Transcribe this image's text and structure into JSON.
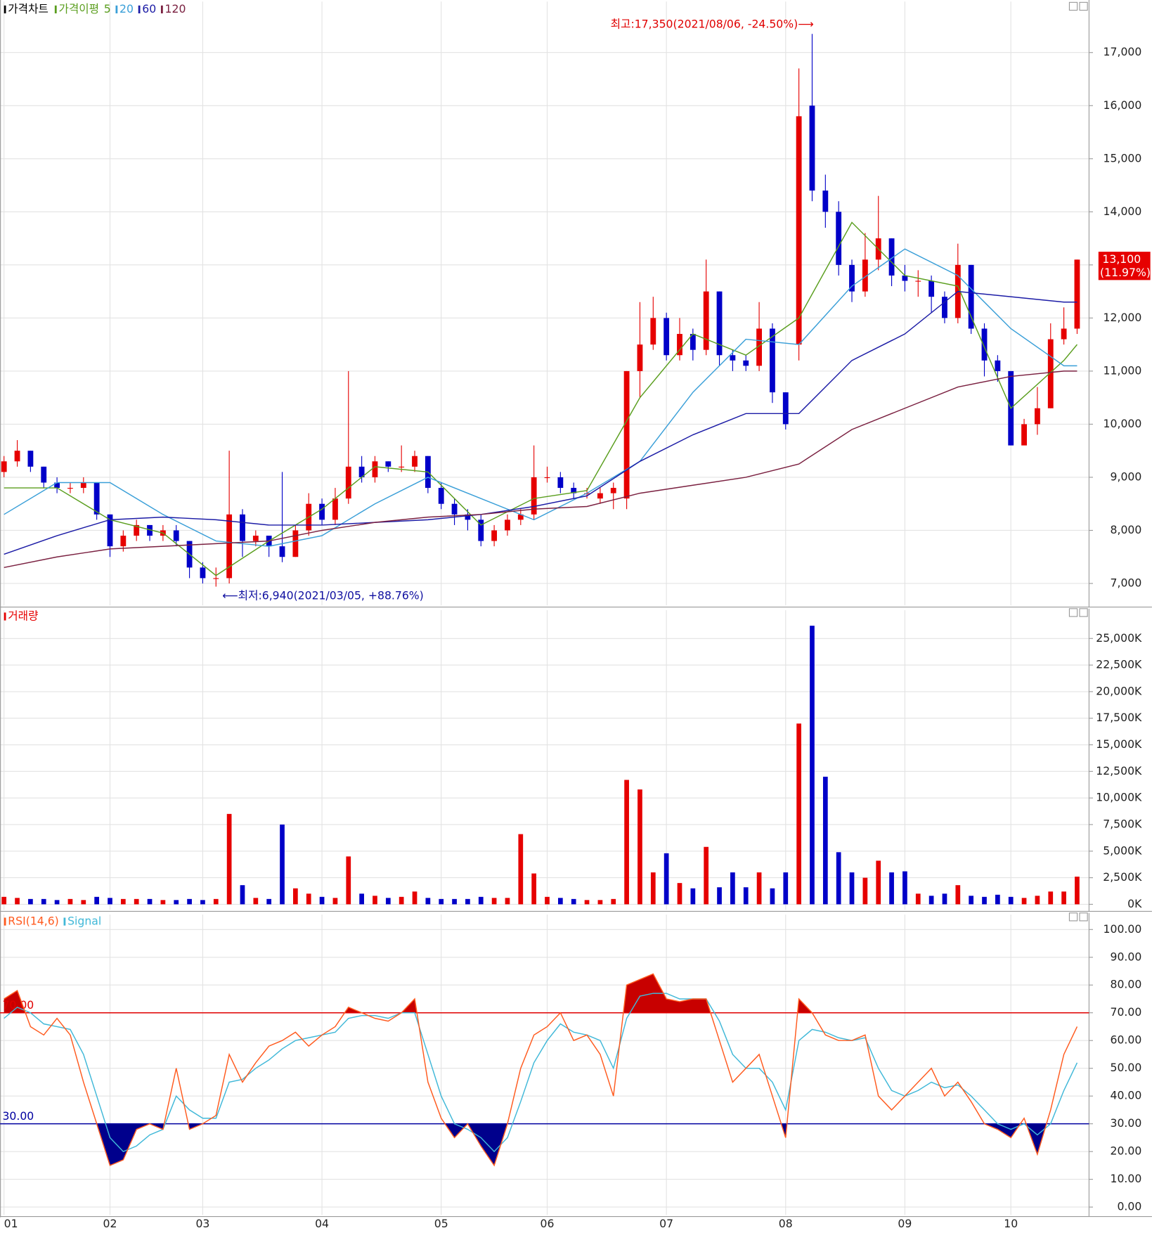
{
  "chart_data": [
    {
      "type": "candlestick",
      "title": "가격차트",
      "ma_title": "가격이평",
      "up_color": "#e60000",
      "down_color": "#0000c8",
      "open": [
        9100,
        9300,
        9500,
        9200,
        8900,
        8800,
        8800,
        8900,
        8300,
        7700,
        7900,
        8100,
        7900,
        8000,
        7800,
        7300,
        7100,
        7100,
        8300,
        7800,
        7900,
        7700,
        7500,
        8000,
        8500,
        8200,
        8600,
        9200,
        9000,
        9300,
        9200,
        9200,
        9400,
        8800,
        8500,
        8300,
        8200,
        7800,
        8000,
        8200,
        8300,
        9000,
        9000,
        8800,
        8700,
        8600,
        8700,
        8600,
        11000,
        11500,
        12000,
        11300,
        11700,
        11400,
        12500,
        11300,
        11200,
        11100,
        11800,
        10600,
        11500,
        16000,
        14400,
        14000,
        13000,
        12500,
        13100,
        13500,
        12800,
        12700,
        12700,
        12400,
        12000,
        13000,
        11800,
        11200,
        11000,
        9600,
        10000,
        10300,
        11600,
        11800
      ],
      "high": [
        9400,
        9700,
        9500,
        9200,
        9000,
        8900,
        9000,
        8900,
        8300,
        8000,
        8200,
        8100,
        8100,
        8100,
        7800,
        7400,
        7300,
        9500,
        8400,
        8000,
        7900,
        9100,
        8100,
        8700,
        8600,
        8800,
        11000,
        9400,
        9400,
        9300,
        9600,
        9500,
        9400,
        8900,
        8600,
        8400,
        8300,
        8100,
        8300,
        8400,
        9600,
        9200,
        9100,
        8900,
        8800,
        8800,
        8900,
        11000,
        12300,
        12400,
        12100,
        12000,
        11800,
        13100,
        12500,
        11400,
        11300,
        12300,
        11900,
        10600,
        16700,
        17350,
        14700,
        14200,
        13100,
        13600,
        14300,
        13500,
        13000,
        12900,
        12800,
        12500,
        13400,
        13000,
        11900,
        11300,
        11000,
        10100,
        10700,
        11900,
        12200,
        13100
      ],
      "low": [
        9000,
        9200,
        9100,
        8800,
        8700,
        8700,
        8700,
        8200,
        7500,
        7600,
        7800,
        7800,
        7800,
        7700,
        7100,
        7000,
        6940,
        7000,
        7500,
        7700,
        7500,
        7400,
        7500,
        7900,
        8100,
        8100,
        8500,
        8900,
        8900,
        9100,
        9100,
        9100,
        8700,
        8400,
        8100,
        8000,
        7700,
        7700,
        7900,
        8100,
        8200,
        8900,
        8700,
        8600,
        8600,
        8500,
        8400,
        8400,
        10500,
        11400,
        11200,
        11200,
        11200,
        11300,
        11100,
        11000,
        11000,
        11000,
        10400,
        9900,
        11200,
        14200,
        13700,
        12800,
        12300,
        12400,
        12900,
        12600,
        12500,
        12400,
        12100,
        11900,
        11900,
        11700,
        10900,
        10800,
        9600,
        9700,
        9800,
        10300,
        11500,
        11700
      ],
      "close": [
        9300,
        9500,
        9200,
        8900,
        8800,
        8800,
        8900,
        8300,
        7700,
        7900,
        8100,
        7900,
        8000,
        7800,
        7300,
        7100,
        7100,
        8300,
        7800,
        7900,
        7700,
        7500,
        8000,
        8500,
        8200,
        8600,
        9200,
        9000,
        9300,
        9200,
        9200,
        9400,
        8800,
        8500,
        8300,
        8200,
        7800,
        8000,
        8200,
        8300,
        9000,
        9000,
        8800,
        8700,
        8700,
        8700,
        8800,
        11000,
        11500,
        12000,
        11300,
        11700,
        11400,
        12500,
        11300,
        11200,
        11100,
        11800,
        10600,
        10000,
        15800,
        14400,
        14000,
        13000,
        12500,
        13100,
        13500,
        12800,
        12700,
        12700,
        12400,
        12000,
        13000,
        11800,
        11200,
        11000,
        9600,
        10000,
        10300,
        11600,
        11800,
        13100
      ],
      "lines": [
        {
          "name": "5",
          "color": "#5a9e1e",
          "x": [
            0,
            4,
            8,
            12,
            16,
            20,
            24,
            28,
            32,
            36,
            40,
            44,
            48,
            52,
            56,
            60,
            64,
            68,
            72,
            76,
            80,
            81
          ],
          "values": [
            8800,
            8800,
            8200,
            7950,
            7150,
            7800,
            8400,
            9200,
            9100,
            8100,
            8600,
            8750,
            10500,
            11700,
            11300,
            12000,
            13800,
            12800,
            12600,
            10300,
            11200,
            11500
          ]
        },
        {
          "name": "20",
          "color": "#3a9fd8",
          "x": [
            0,
            4,
            8,
            12,
            16,
            20,
            24,
            28,
            32,
            36,
            40,
            44,
            48,
            52,
            56,
            60,
            64,
            68,
            72,
            76,
            80,
            81
          ],
          "values": [
            8300,
            8900,
            8900,
            8300,
            7800,
            7700,
            7900,
            8500,
            9000,
            8600,
            8200,
            8700,
            9300,
            10600,
            11600,
            11500,
            12600,
            13300,
            12800,
            11800,
            11100,
            11100
          ]
        },
        {
          "name": "60",
          "color": "#1c1ca6",
          "x": [
            0,
            4,
            8,
            12,
            16,
            20,
            24,
            28,
            32,
            36,
            40,
            44,
            48,
            52,
            56,
            60,
            64,
            68,
            72,
            76,
            80,
            81
          ],
          "values": [
            7550,
            7900,
            8200,
            8250,
            8200,
            8100,
            8100,
            8150,
            8200,
            8300,
            8450,
            8650,
            9300,
            9800,
            10200,
            10200,
            11200,
            11700,
            12500,
            12400,
            12300,
            12300
          ]
        },
        {
          "name": "120",
          "color": "#7a2040",
          "x": [
            0,
            4,
            8,
            12,
            16,
            20,
            24,
            28,
            32,
            36,
            40,
            44,
            48,
            52,
            56,
            60,
            64,
            68,
            72,
            76,
            80,
            81
          ],
          "values": [
            7300,
            7500,
            7650,
            7700,
            7750,
            7800,
            8000,
            8150,
            8250,
            8300,
            8400,
            8450,
            8700,
            8850,
            9000,
            9250,
            9900,
            10300,
            10700,
            10900,
            11000,
            11000
          ]
        }
      ],
      "ylim": [
        6585,
        17960
      ],
      "yticks": [
        {
          "value": 7000,
          "label": "7,000"
        },
        {
          "value": 8000,
          "label": "8,000"
        },
        {
          "value": 9000,
          "label": "9,000"
        },
        {
          "value": 10000,
          "label": "10,000"
        },
        {
          "value": 11000,
          "label": "11,000"
        },
        {
          "value": 12000,
          "label": "12,000"
        },
        {
          "value": 13000,
          "label": "13,000"
        },
        {
          "value": 14000,
          "label": "14,000"
        },
        {
          "value": 15000,
          "label": "15,000"
        },
        {
          "value": 16000,
          "label": "16,000"
        },
        {
          "value": 17000,
          "label": "17,000"
        }
      ],
      "grid": true,
      "high_annotation": "최고:17,350(2021/08/06, -24.50%)⟶",
      "low_annotation": "⟵최저:6,940(2021/03/05, +88.76%)",
      "last_price_label": "13,100",
      "last_change_label": "(11.97%)"
    },
    {
      "type": "bar",
      "title": "거래량",
      "title_color": "#e60000",
      "values": [
        700,
        600,
        500,
        500,
        400,
        500,
        400,
        700,
        600,
        500,
        500,
        500,
        400,
        400,
        500,
        400,
        500,
        8500,
        1800,
        600,
        500,
        7500,
        1500,
        1000,
        700,
        600,
        4500,
        1000,
        800,
        600,
        700,
        1200,
        600,
        500,
        500,
        500,
        700,
        600,
        600,
        6600,
        2900,
        700,
        600,
        500,
        400,
        400,
        500,
        11700,
        10800,
        3000,
        4800,
        2000,
        1500,
        5400,
        1600,
        3000,
        1600,
        3000,
        1500,
        3000,
        17000,
        26200,
        12000,
        4900,
        3000,
        2500,
        4100,
        3000,
        3100,
        1000,
        800,
        1000,
        1800,
        800,
        700,
        900,
        700,
        600,
        800,
        1200,
        1200,
        2600
      ],
      "ylim": [
        -518,
        27660
      ],
      "yticks": [
        {
          "value": 0,
          "label": "0K"
        },
        {
          "value": 2500,
          "label": "2,500K"
        },
        {
          "value": 5000,
          "label": "5,000K"
        },
        {
          "value": 7500,
          "label": "7,500K"
        },
        {
          "value": 10000,
          "label": "10,000K"
        },
        {
          "value": 12500,
          "label": "12,500K"
        },
        {
          "value": 15000,
          "label": "15,000K"
        },
        {
          "value": 17500,
          "label": "17,500K"
        },
        {
          "value": 20000,
          "label": "20,000K"
        },
        {
          "value": 22500,
          "label": "22,500K"
        },
        {
          "value": 25000,
          "label": "25,000K"
        }
      ],
      "grid": true
    },
    {
      "type": "line",
      "series": [
        {
          "name": "RSI(14,6)",
          "color": "#ff5a1e",
          "values": [
            75,
            78,
            65,
            62,
            68,
            62,
            45,
            30,
            15,
            17,
            28,
            30,
            28,
            50,
            28,
            30,
            33,
            55,
            45,
            52,
            58,
            60,
            63,
            58,
            62,
            65,
            72,
            70,
            68,
            67,
            70,
            75,
            45,
            32,
            25,
            30,
            22,
            15,
            30,
            50,
            62,
            65,
            70,
            60,
            62,
            55,
            40,
            80,
            82,
            84,
            75,
            74,
            75,
            75,
            60,
            45,
            50,
            55,
            40,
            25,
            75,
            70,
            62,
            60,
            60,
            62,
            40,
            35,
            40,
            45,
            50,
            40,
            45,
            38,
            30,
            28,
            25,
            32,
            19,
            35,
            55,
            65
          ]
        },
        {
          "name": "Signal",
          "color": "#40b8d8",
          "values": [
            68,
            72,
            70,
            66,
            65,
            64,
            55,
            40,
            25,
            20,
            22,
            26,
            28,
            40,
            35,
            32,
            32,
            45,
            46,
            50,
            53,
            57,
            60,
            61,
            62,
            63,
            68,
            69,
            69,
            68,
            70,
            70,
            55,
            40,
            30,
            28,
            25,
            20,
            25,
            38,
            52,
            60,
            66,
            63,
            62,
            60,
            50,
            68,
            76,
            77,
            77,
            75,
            75,
            75,
            67,
            55,
            50,
            50,
            45,
            35,
            60,
            64,
            63,
            61,
            60,
            61,
            50,
            42,
            40,
            42,
            45,
            43,
            44,
            40,
            35,
            30,
            28,
            30,
            26,
            30,
            42,
            52
          ]
        }
      ],
      "reference_lines": [
        {
          "value": 70,
          "label": "70.00",
          "color": "#e00000",
          "fill": "#c80000"
        },
        {
          "value": 30,
          "label": "30.00",
          "color": "#0000a0",
          "fill": "#00008c"
        }
      ],
      "ylim": [
        -2.83,
        105.4
      ],
      "yticks": [
        {
          "value": 0,
          "label": "0.00"
        },
        {
          "value": 10,
          "label": "10.00"
        },
        {
          "value": 20,
          "label": "20.00"
        },
        {
          "value": 30,
          "label": "30.00"
        },
        {
          "value": 40,
          "label": "40.00"
        },
        {
          "value": 50,
          "label": "50.00"
        },
        {
          "value": 60,
          "label": "60.00"
        },
        {
          "value": 70,
          "label": "70.00"
        },
        {
          "value": 80,
          "label": "80.00"
        },
        {
          "value": 90,
          "label": "90.00"
        },
        {
          "value": 100,
          "label": "100.00"
        }
      ],
      "grid": true,
      "categories": [
        "01",
        null,
        null,
        null,
        null,
        null,
        null,
        null,
        "02",
        null,
        null,
        null,
        null,
        null,
        null,
        "03",
        null,
        null,
        null,
        null,
        null,
        null,
        null,
        null,
        "04",
        null,
        null,
        null,
        null,
        null,
        null,
        null,
        null,
        "05",
        null,
        null,
        null,
        null,
        null,
        null,
        null,
        "06",
        null,
        null,
        null,
        null,
        null,
        null,
        null,
        null,
        "07",
        null,
        null,
        null,
        null,
        null,
        null,
        null,
        null,
        "08",
        null,
        null,
        null,
        null,
        null,
        null,
        null,
        null,
        "09",
        null,
        null,
        null,
        null,
        null,
        null,
        null,
        "10",
        null,
        null,
        null,
        null,
        null
      ]
    }
  ]
}
